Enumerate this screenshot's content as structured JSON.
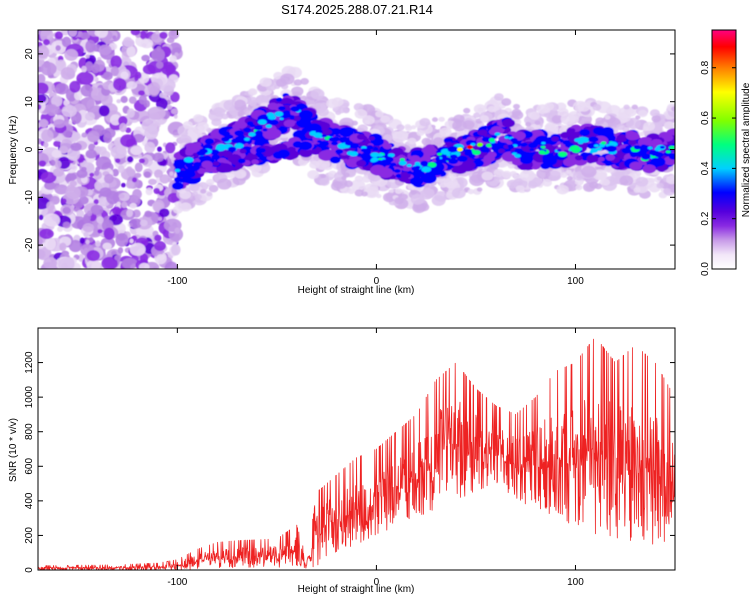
{
  "title": "S174.2025.288.07.21.R14",
  "chart_data": [
    {
      "type": "heatmap",
      "xlabel": "Height of straight line (km)",
      "ylabel": "Frequency (Hz)",
      "xlim": [
        -170,
        150
      ],
      "ylim": [
        -25,
        25
      ],
      "xticks": [
        -100,
        0,
        100
      ],
      "yticks": [
        -20,
        -10,
        0,
        10,
        20
      ],
      "grid": false,
      "ridge": {
        "x": [
          -100,
          -90,
          -80,
          -70,
          -60,
          -50,
          -45,
          -40,
          -35,
          -30,
          -25,
          -20,
          -10,
          0,
          10,
          20,
          30,
          40,
          50,
          60,
          65,
          70,
          80,
          90,
          100,
          110,
          120,
          130,
          140,
          150
        ],
        "y": [
          -5,
          -2,
          0,
          2,
          4,
          7,
          8,
          7,
          5,
          3,
          2,
          1,
          0,
          -1,
          -3,
          -4,
          -2,
          -1,
          0,
          2,
          3,
          0,
          0,
          0,
          1,
          1,
          0,
          0,
          -1,
          0
        ]
      },
      "colorbar": {
        "label": "Normalized spectral amplitude",
        "range": [
          0.0,
          0.95
        ],
        "ticks": [
          0.0,
          0.2,
          0.4,
          0.6,
          0.8
        ],
        "tick_labels": [
          "0.0",
          "0.2",
          "0.4",
          "0.6",
          "0.8"
        ],
        "colors": [
          "#ffffff",
          "#e6c8f0",
          "#8a2be2",
          "#5a00d8",
          "#0000ff",
          "#00d0ff",
          "#00ff80",
          "#7fff00",
          "#ffff00",
          "#ff8000",
          "#ff0000",
          "#ff0080"
        ]
      }
    },
    {
      "type": "line",
      "xlabel": "Height of straight line (km)",
      "ylabel": "SNR (10 * v/v)",
      "xlim": [
        -170,
        150
      ],
      "ylim": [
        0,
        1400
      ],
      "xticks": [
        -100,
        0,
        100
      ],
      "yticks": [
        0,
        200,
        400,
        600,
        800,
        1000,
        1200
      ],
      "grid": false,
      "series": [
        {
          "name": "SNR",
          "color": "#ee2222",
          "envelope": {
            "x": [
              -170,
              -130,
              -110,
              -100,
              -95,
              -90,
              -80,
              -70,
              -60,
              -50,
              -40,
              -35,
              -30,
              -25,
              -20,
              -10,
              0,
              10,
              20,
              30,
              40,
              50,
              60,
              70,
              80,
              90,
              100,
              110,
              120,
              130,
              140,
              150
            ],
            "low": [
              0,
              0,
              0,
              0,
              0,
              5,
              10,
              10,
              15,
              15,
              20,
              10,
              20,
              80,
              100,
              150,
              200,
              250,
              300,
              350,
              400,
              450,
              500,
              400,
              350,
              300,
              250,
              200,
              180,
              150,
              120,
              100
            ],
            "high": [
              25,
              30,
              40,
              60,
              90,
              120,
              160,
              170,
              175,
              180,
              260,
              60,
              450,
              500,
              550,
              650,
              700,
              800,
              900,
              1100,
              1200,
              1050,
              950,
              900,
              1000,
              1150,
              1200,
              1350,
              1200,
              1300,
              1200,
              1000
            ]
          }
        }
      ]
    }
  ]
}
